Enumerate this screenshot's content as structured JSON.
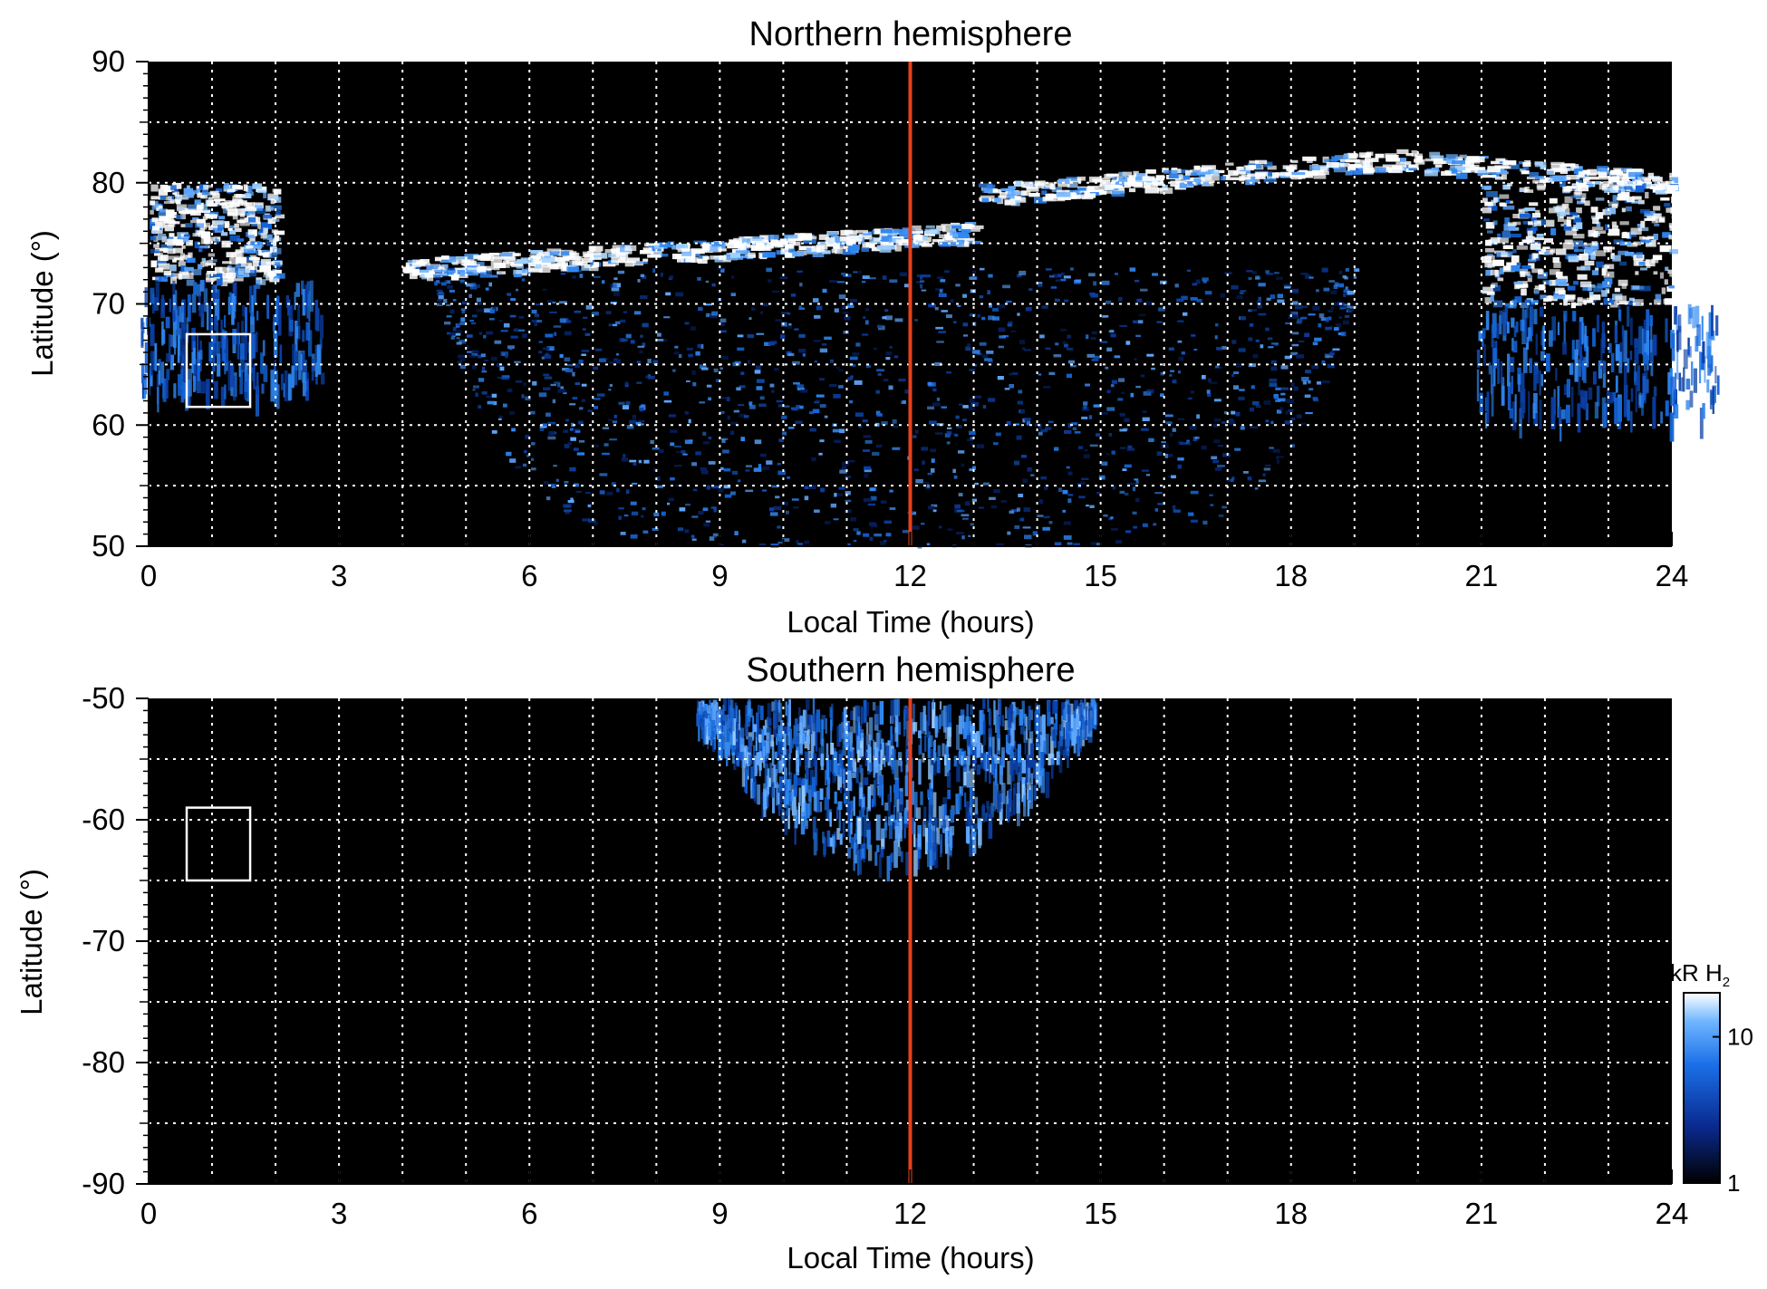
{
  "chart_data": [
    {
      "type": "heatmap",
      "title": "Northern hemisphere",
      "xlabel": "Local Time (hours)",
      "ylabel": "Latitude (°)",
      "xlim": [
        0,
        24
      ],
      "ylim": [
        50,
        90
      ],
      "x_ticks": [
        "0",
        "3",
        "6",
        "9",
        "12",
        "15",
        "18",
        "21",
        "24"
      ],
      "y_ticks": [
        "50",
        "60",
        "70",
        "80",
        "90"
      ],
      "grid": true,
      "background": "#000000",
      "highlight_line": {
        "x": 12,
        "color": "#e8401c"
      },
      "box": {
        "x": [
          0.6,
          1.6
        ],
        "y": [
          61.5,
          67.5
        ],
        "color": "#ffffff"
      },
      "features": [
        {
          "kind": "auroral-oval",
          "lt": [
            4,
            13
          ],
          "lat": [
            73,
            76
          ],
          "note": "bright emission band"
        },
        {
          "kind": "auroral-oval",
          "lt": [
            13,
            24
          ],
          "lat": [
            76,
            82
          ]
        },
        {
          "kind": "bright-patch",
          "lt": [
            0,
            2
          ],
          "lat": [
            72,
            80
          ]
        },
        {
          "kind": "bright-patch",
          "lt": [
            21,
            24
          ],
          "lat": [
            70,
            80
          ]
        },
        {
          "kind": "speckled-region",
          "lt": [
            4.5,
            19
          ],
          "lat": [
            50,
            73
          ]
        }
      ]
    },
    {
      "type": "heatmap",
      "title": "Southern hemisphere",
      "xlabel": "Local Time (hours)",
      "ylabel": "Latitude (°)",
      "xlim": [
        0,
        24
      ],
      "ylim": [
        -90,
        -50
      ],
      "x_ticks": [
        "0",
        "3",
        "6",
        "9",
        "12",
        "15",
        "18",
        "21",
        "24"
      ],
      "y_ticks": [
        "-90",
        "-80",
        "-70",
        "-60",
        "-50"
      ],
      "grid": true,
      "background": "#000000",
      "highlight_line": {
        "x": 12,
        "color": "#e8401c"
      },
      "box": {
        "x": [
          0.6,
          1.6
        ],
        "y": [
          -65,
          -59
        ],
        "color": "#ffffff"
      },
      "features": [
        {
          "kind": "emission-fan",
          "lt": [
            8.6,
            14.9
          ],
          "lat": [
            -63,
            -50
          ]
        }
      ]
    }
  ],
  "colorbar": {
    "label_main": "kR H",
    "label_sub": "2",
    "scale": "log",
    "range": [
      1,
      20
    ],
    "tick_labels": [
      "1",
      "10"
    ],
    "colors": [
      "#000000",
      "#0a2a90",
      "#1a6fe8",
      "#6fb6ff",
      "#ffffff"
    ]
  }
}
